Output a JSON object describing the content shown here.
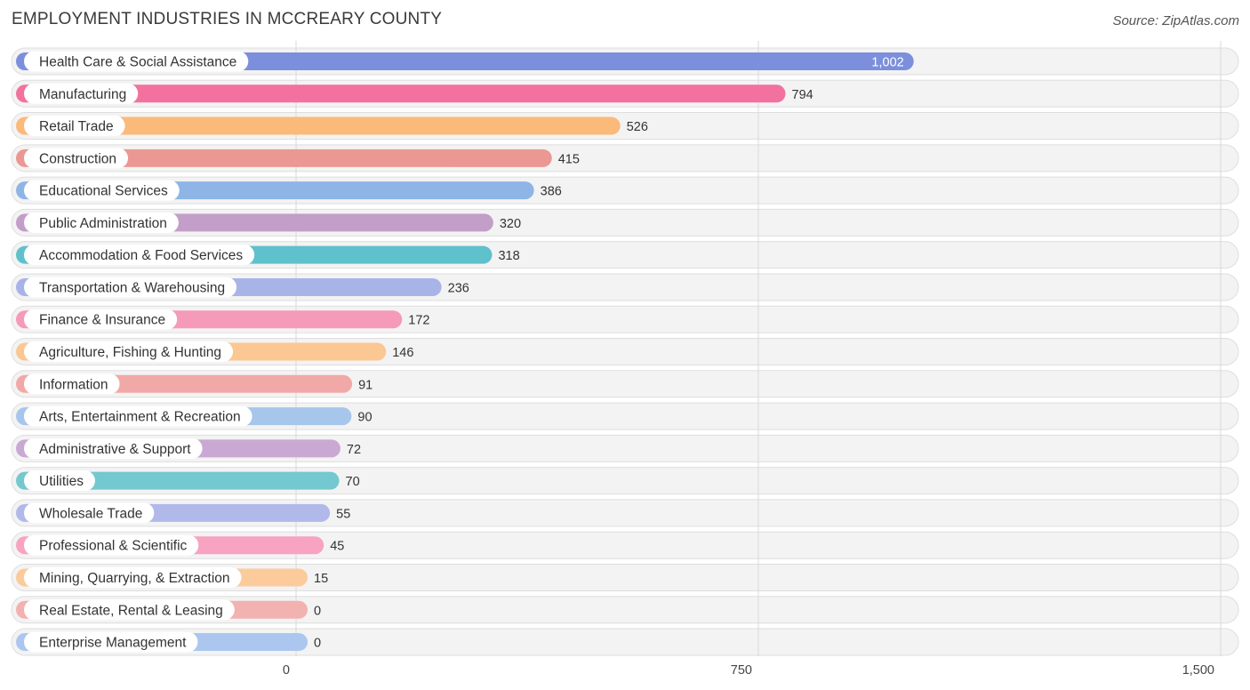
{
  "chart_data": {
    "type": "bar",
    "orientation": "horizontal",
    "title": "EMPLOYMENT INDUSTRIES IN MCCREARY COUNTY",
    "source": "Source: ZipAtlas.com",
    "categories": [
      "Health Care & Social Assistance",
      "Manufacturing",
      "Retail Trade",
      "Construction",
      "Educational Services",
      "Public Administration",
      "Accommodation & Food Services",
      "Transportation & Warehousing",
      "Finance & Insurance",
      "Agriculture, Fishing & Hunting",
      "Information",
      "Arts, Entertainment & Recreation",
      "Administrative & Support",
      "Utilities",
      "Wholesale Trade",
      "Professional & Scientific",
      "Mining, Quarrying, & Extraction",
      "Real Estate, Rental & Leasing",
      "Enterprise Management"
    ],
    "values": [
      1002,
      794,
      526,
      415,
      386,
      320,
      318,
      236,
      172,
      146,
      91,
      90,
      72,
      70,
      55,
      45,
      15,
      0,
      0
    ],
    "value_labels": [
      "1,002",
      "794",
      "526",
      "415",
      "386",
      "320",
      "318",
      "236",
      "172",
      "146",
      "91",
      "90",
      "72",
      "70",
      "55",
      "45",
      "15",
      "0",
      "0"
    ],
    "colors": [
      "#7b8fdc",
      "#f2719e",
      "#fbb97a",
      "#eb9894",
      "#8eb5e6",
      "#c39ec8",
      "#5fc1cb",
      "#a8b3e8",
      "#f59ab8",
      "#fbc792",
      "#f0a9a6",
      "#a7c6ec",
      "#c9a9d3",
      "#74c8cf",
      "#b0b9ea",
      "#f7a3c1",
      "#fbcb9b",
      "#f2b2b0",
      "#abc7ef"
    ],
    "xlim": [
      0,
      1500
    ],
    "xticks": [
      0,
      750,
      1500
    ],
    "xtick_labels": [
      "0",
      "750",
      "1,500"
    ],
    "grid": true,
    "xlabel": "",
    "ylabel": ""
  }
}
